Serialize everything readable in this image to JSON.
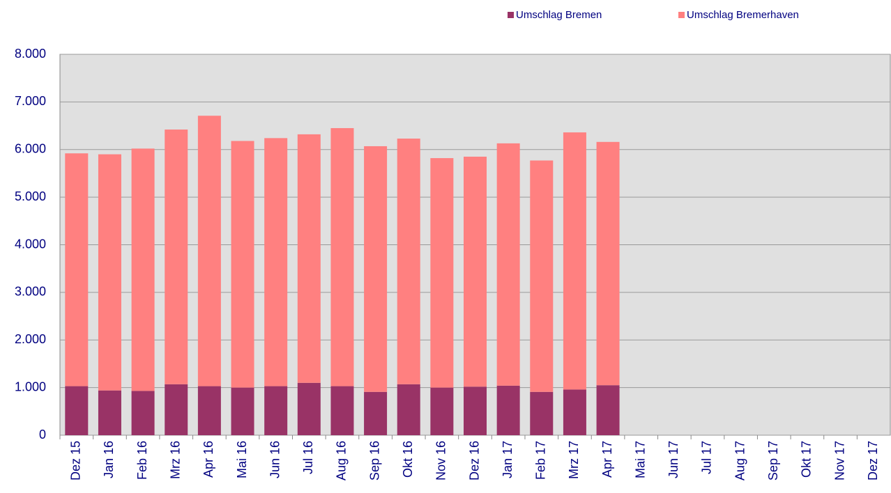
{
  "chart_data": {
    "type": "stacked-bar",
    "categories": [
      "Dez 15",
      "Jan 16",
      "Feb 16",
      "Mrz 16",
      "Apr 16",
      "Mai 16",
      "Jun 16",
      "Jul 16",
      "Aug 16",
      "Sep 16",
      "Okt 16",
      "Nov 16",
      "Dez 16",
      "Jan 17",
      "Feb 17",
      "Mrz 17",
      "Apr 17",
      "Mai 17",
      "Jun 17",
      "Jul 17",
      "Aug 17",
      "Sep 17",
      "Okt 17",
      "Nov 17",
      "Dez 17"
    ],
    "series": [
      {
        "name": "Umschlag Bremen",
        "color": "#993366",
        "values": [
          1030,
          940,
          930,
          1070,
          1030,
          1000,
          1030,
          1100,
          1030,
          910,
          1070,
          1000,
          1020,
          1040,
          910,
          960,
          1050,
          null,
          null,
          null,
          null,
          null,
          null,
          null,
          null
        ]
      },
      {
        "name": "Umschlag Bremerhaven",
        "color": "#ff8080",
        "values": [
          4890,
          4960,
          5090,
          5350,
          5680,
          5180,
          5210,
          5220,
          5420,
          5160,
          5160,
          4820,
          4830,
          5090,
          4860,
          5400,
          5110,
          null,
          null,
          null,
          null,
          null,
          null,
          null,
          null
        ]
      }
    ],
    "ylim": [
      0,
      8000
    ],
    "yticks": [
      0,
      {
        "value": 1000,
        "label": "1.000"
      },
      {
        "value": 2000,
        "label": "2.000"
      },
      {
        "value": 3000,
        "label": "3.000"
      },
      {
        "value": 4000,
        "label": "4.000"
      },
      {
        "value": 5000,
        "label": "5.000"
      },
      {
        "value": 6000,
        "label": "6.000"
      },
      {
        "value": 7000,
        "label": "7.000"
      },
      {
        "value": 8000,
        "label": "8.000"
      }
    ],
    "grid": true,
    "legend": "top-right"
  }
}
